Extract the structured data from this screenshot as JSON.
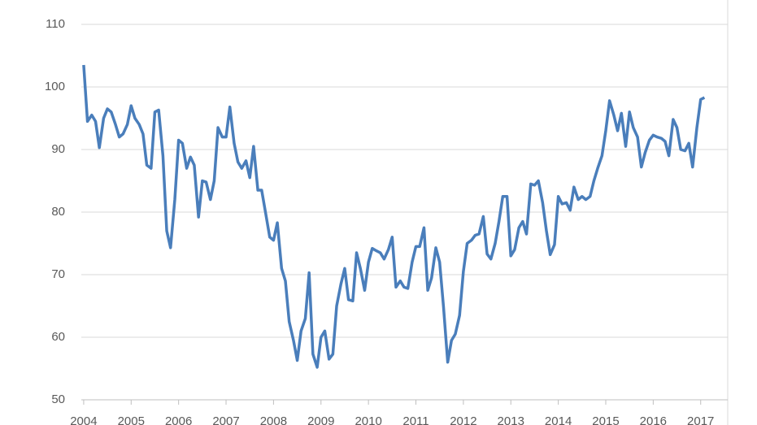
{
  "chart_data": {
    "type": "line",
    "x": [
      2004.0,
      2004.08,
      2004.17,
      2004.25,
      2004.33,
      2004.42,
      2004.5,
      2004.58,
      2004.67,
      2004.75,
      2004.83,
      2004.92,
      2005.0,
      2005.08,
      2005.17,
      2005.25,
      2005.33,
      2005.42,
      2005.5,
      2005.58,
      2005.67,
      2005.75,
      2005.83,
      2005.92,
      2006.0,
      2006.08,
      2006.17,
      2006.25,
      2006.33,
      2006.42,
      2006.5,
      2006.58,
      2006.67,
      2006.75,
      2006.83,
      2006.92,
      2007.0,
      2007.08,
      2007.17,
      2007.25,
      2007.33,
      2007.42,
      2007.5,
      2007.58,
      2007.67,
      2007.75,
      2007.83,
      2007.92,
      2008.0,
      2008.08,
      2008.17,
      2008.25,
      2008.33,
      2008.42,
      2008.5,
      2008.58,
      2008.67,
      2008.75,
      2008.83,
      2008.92,
      2009.0,
      2009.08,
      2009.17,
      2009.25,
      2009.33,
      2009.42,
      2009.5,
      2009.58,
      2009.67,
      2009.75,
      2009.83,
      2009.92,
      2010.0,
      2010.08,
      2010.17,
      2010.25,
      2010.33,
      2010.42,
      2010.5,
      2010.58,
      2010.67,
      2010.75,
      2010.83,
      2010.92,
      2011.0,
      2011.08,
      2011.17,
      2011.25,
      2011.33,
      2011.42,
      2011.5,
      2011.58,
      2011.67,
      2011.75,
      2011.83,
      2011.92,
      2012.0,
      2012.08,
      2012.17,
      2012.25,
      2012.33,
      2012.42,
      2012.5,
      2012.58,
      2012.67,
      2012.75,
      2012.83,
      2012.92,
      2013.0,
      2013.08,
      2013.17,
      2013.25,
      2013.33,
      2013.42,
      2013.5,
      2013.58,
      2013.67,
      2013.75,
      2013.83,
      2013.92,
      2014.0,
      2014.08,
      2014.17,
      2014.25,
      2014.33,
      2014.42,
      2014.5,
      2014.58,
      2014.67,
      2014.75,
      2014.83,
      2014.92,
      2015.0,
      2015.08,
      2015.17,
      2015.25,
      2015.33,
      2015.42,
      2015.5,
      2015.58,
      2015.67,
      2015.75,
      2015.83,
      2015.92,
      2016.0,
      2016.08,
      2016.17,
      2016.25,
      2016.33,
      2016.42,
      2016.5,
      2016.58,
      2016.67,
      2016.75,
      2016.83,
      2016.92,
      2017.0,
      2017.08
    ],
    "series": [
      {
        "color": "#4a7ebb",
        "values": [
          103.5,
          94.5,
          95.5,
          94.5,
          90.3,
          95,
          96.5,
          96,
          94,
          92,
          92.5,
          94,
          97,
          95,
          94,
          92.5,
          87.5,
          87,
          96,
          96.3,
          89,
          77,
          74.3,
          82,
          91.5,
          91,
          87,
          88.8,
          87.5,
          79.2,
          85,
          84.8,
          82,
          85,
          93.5,
          92,
          92,
          96.8,
          91,
          88,
          87,
          88.2,
          85.5,
          90.5,
          83.5,
          83.5,
          80,
          76,
          75.5,
          78.3,
          71,
          69,
          62.5,
          59.5,
          56.3,
          61,
          63,
          70.3,
          57.3,
          55.2,
          60,
          61,
          56.5,
          57.3,
          65,
          68.5,
          71,
          66,
          65.8,
          73.5,
          71,
          67.5,
          72,
          74.2,
          73.8,
          73.5,
          72.5,
          74,
          76,
          68,
          69,
          68,
          67.8,
          72,
          74.5,
          74.5,
          77.5,
          67.5,
          69.5,
          74.3,
          72,
          65,
          56,
          59.5,
          60.5,
          63.5,
          70.5,
          75,
          75.5,
          76.3,
          76.5,
          79.3,
          73.3,
          72.5,
          75,
          78.5,
          82.5,
          82.5,
          73,
          74,
          77.5,
          78.5,
          76.5,
          84.5,
          84.3,
          85,
          81.5,
          77,
          73.2,
          74.8,
          82.5,
          81.3,
          81.5,
          80.3,
          84,
          82,
          82.5,
          82,
          82.5,
          85,
          87,
          89,
          93,
          97.8,
          95.5,
          93,
          95.8,
          90.5,
          96,
          93.5,
          92,
          87.2,
          89.5,
          91.5,
          92.3,
          92,
          91.8,
          91.3,
          89,
          94.8,
          93.5,
          90,
          89.8,
          91,
          87.2,
          93.5,
          98,
          98.3
        ]
      }
    ],
    "xlim": [
      2003.95,
      2017.57
    ],
    "xticks": [
      2004,
      2005,
      2006,
      2007,
      2008,
      2009,
      2010,
      2011,
      2012,
      2013,
      2014,
      2015,
      2016,
      2017
    ],
    "ylim": [
      50,
      110
    ],
    "yticks": [
      50,
      60,
      70,
      80,
      90,
      100,
      110
    ],
    "grid": true
  }
}
